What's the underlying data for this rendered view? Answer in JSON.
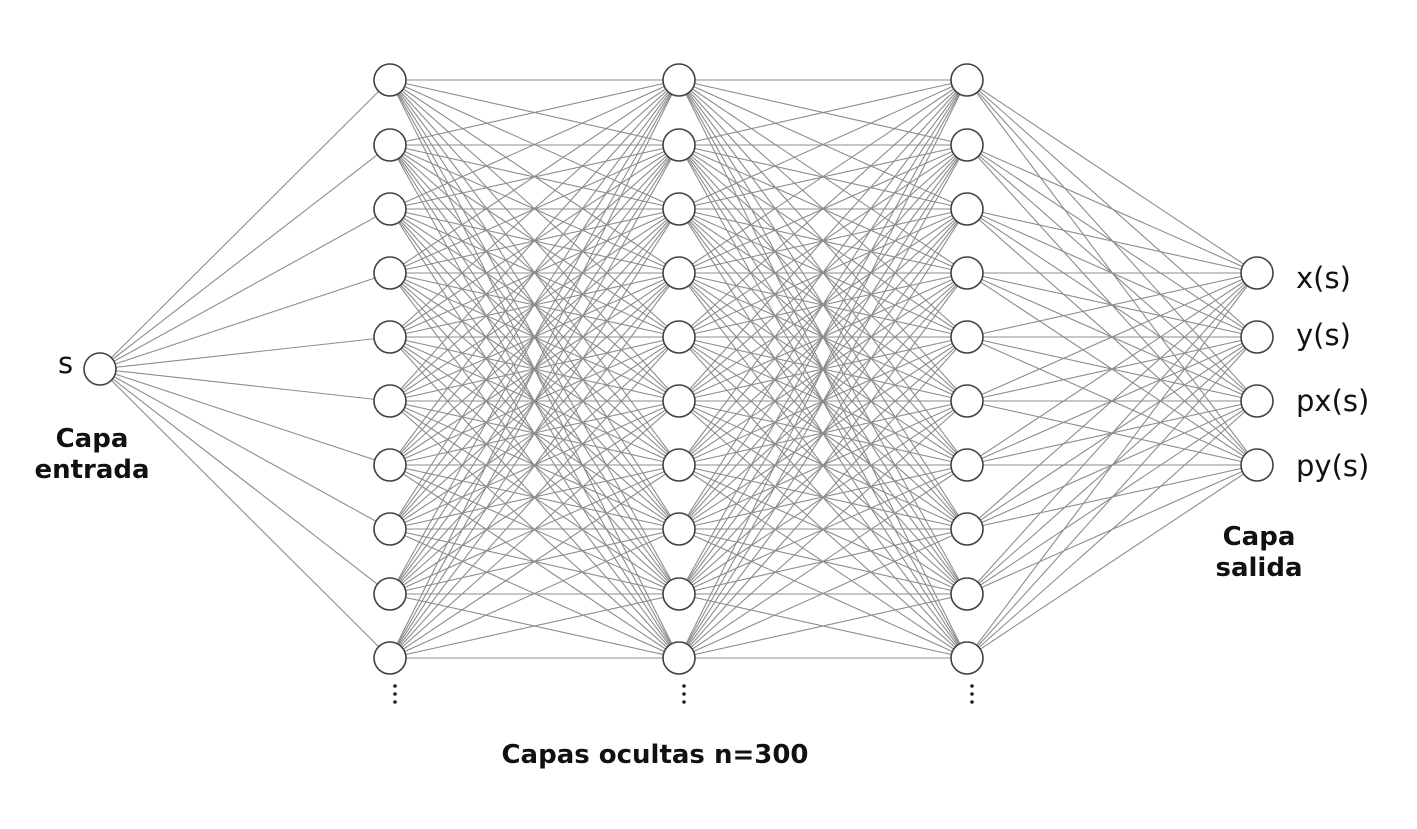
{
  "input": {
    "label": "s",
    "caption_line1": "Capa",
    "caption_line2": "entrada"
  },
  "hidden": {
    "caption": "Capas ocultas n=300",
    "layers_shown": 3,
    "neurons_shown_per_layer": 10,
    "continuation": "⋮"
  },
  "output": {
    "labels": [
      "x(s)",
      "y(s)",
      "px(s)",
      "py(s)"
    ],
    "caption_line1": "Capa",
    "caption_line2": "salida"
  },
  "colors": {
    "edge": "#8c8c8c",
    "neuron_stroke": "#404040",
    "neuron_fill": "#ffffff",
    "text": "#111111"
  }
}
